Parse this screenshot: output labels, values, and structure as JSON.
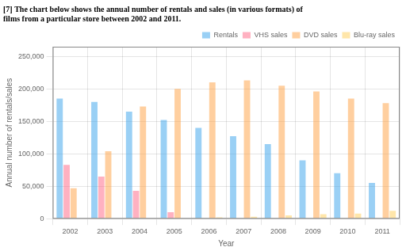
{
  "chart_data": {
    "type": "bar",
    "title": [
      "[7] The chart below shows the annual number of rentals and sales (in various formats) of",
      "films from a particular store between 2002 and 2011."
    ],
    "xlabel": "Year",
    "ylabel": "Annual number of rentals/sales",
    "categories": [
      "2002",
      "2003",
      "2004",
      "2005",
      "2006",
      "2007",
      "2008",
      "2009",
      "2010",
      "2011"
    ],
    "series": [
      {
        "name": "Rentals",
        "values": [
          185000,
          180000,
          165000,
          152000,
          140000,
          127000,
          115000,
          90000,
          70000,
          55000
        ]
      },
      {
        "name": "VHS sales",
        "values": [
          83000,
          65000,
          43000,
          10000,
          0,
          0,
          0,
          0,
          0,
          0
        ]
      },
      {
        "name": "DVD sales",
        "values": [
          47000,
          104000,
          173000,
          200000,
          210000,
          213000,
          205000,
          196000,
          185000,
          178000
        ]
      },
      {
        "name": "Blu-ray sales",
        "values": [
          0,
          0,
          0,
          0,
          2000,
          3000,
          5000,
          7000,
          8000,
          12000
        ]
      }
    ],
    "ylim": [
      0,
      265000
    ],
    "yticks": [
      0,
      {
        "value": 50000,
        "label": "50,000"
      },
      {
        "value": 100000,
        "label": "100,000"
      },
      {
        "value": 150000,
        "label": "150,000"
      },
      {
        "value": 200000,
        "label": "200,000"
      },
      {
        "value": 250000,
        "label": "250,000"
      }
    ],
    "grid": true,
    "legend": "upper right"
  }
}
